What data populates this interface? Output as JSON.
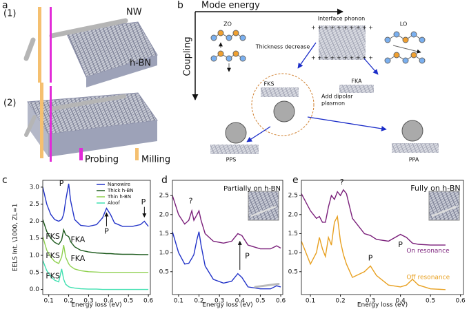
{
  "panel_labels": [
    "a",
    "b",
    "c",
    "d",
    "e"
  ],
  "panel_a": {
    "step_1": "(1)",
    "step_2": "(2)",
    "nanowire": "NW",
    "substrate": "h-BN",
    "probing": "Probing",
    "milling": "Milling"
  },
  "panel_b": {
    "x_axis": "Mode energy",
    "y_axis": "Coupling",
    "zo": "ZO",
    "interface": "Interface phonon",
    "lo": "LO",
    "thickness": "Thickness decrease",
    "fks": "FKS",
    "fka": "FKA",
    "dipolar": [
      "Add dipolar",
      "plasmon"
    ],
    "pps": "PPS",
    "ppa": "PPA"
  },
  "chart_data": [
    {
      "type": "line",
      "xlabel": "Energy loss (eV)",
      "ylabel": "EELS Int. \\1000, ZL=1",
      "x": [
        0.07,
        0.09,
        0.11,
        0.13,
        0.15,
        0.165,
        0.175,
        0.185,
        0.2,
        0.21,
        0.23,
        0.26,
        0.3,
        0.34,
        0.37,
        0.39,
        0.41,
        0.43,
        0.47,
        0.52,
        0.56,
        0.58,
        0.6
      ],
      "series": [
        {
          "name": "Nanowire",
          "color": "#2233c8",
          "values": [
            3.0,
            2.5,
            2.2,
            2.05,
            2.0,
            2.05,
            2.2,
            2.6,
            3.1,
            2.6,
            2.05,
            1.88,
            1.85,
            1.9,
            2.1,
            2.38,
            2.2,
            1.95,
            1.85,
            1.85,
            1.9,
            2.0,
            1.85
          ]
        },
        {
          "name": "Thick h-BN",
          "color": "#1d5a1d",
          "values": [
            2.05,
            1.7,
            1.5,
            1.38,
            1.32,
            1.45,
            1.75,
            1.6,
            1.55,
            1.4,
            1.25,
            1.15,
            1.1,
            1.07,
            1.06,
            1.05,
            1.05,
            1.04,
            1.03,
            1.03,
            1.02,
            1.02,
            1.02
          ]
        },
        {
          "name": "Thin h-BN",
          "color": "#8fd14f",
          "values": [
            1.55,
            1.15,
            0.95,
            0.82,
            0.76,
            0.95,
            1.3,
            0.95,
            0.75,
            0.68,
            0.6,
            0.55,
            0.52,
            0.51,
            0.5,
            0.5,
            0.5,
            0.5,
            0.5,
            0.5,
            0.5,
            0.5,
            0.5
          ]
        },
        {
          "name": "Aloof",
          "color": "#3fe0b0",
          "values": [
            0.85,
            0.55,
            0.38,
            0.27,
            0.22,
            0.6,
            0.3,
            0.15,
            0.08,
            0.06,
            0.04,
            0.02,
            0.01,
            0.01,
            0,
            0,
            0,
            0,
            0,
            0,
            0,
            0,
            0
          ]
        }
      ],
      "xlim": [
        0.07,
        0.61
      ],
      "ylim": [
        -0.15,
        3.2
      ],
      "xticks": [
        0.1,
        0.2,
        0.3,
        0.4,
        0.5,
        0.6
      ],
      "yticks": [
        {
          "value": 0,
          "label": "0.0"
        },
        0.5,
        {
          "value": 1,
          "label": "1.0"
        },
        1.5,
        {
          "value": 2,
          "label": "2.0"
        },
        2.5,
        {
          "value": 3,
          "label": "3.0"
        }
      ],
      "legend": "upper right",
      "annotations": [
        "P",
        "P",
        "P",
        "FKS",
        "FKA",
        "FKS",
        "FKA",
        "FKS"
      ]
    },
    {
      "type": "line",
      "xlabel": "Energy loss (eV)",
      "x": [
        0.07,
        0.1,
        0.13,
        0.15,
        0.165,
        0.175,
        0.19,
        0.2,
        0.21,
        0.23,
        0.27,
        0.32,
        0.36,
        0.39,
        0.41,
        0.44,
        0.5,
        0.55,
        0.58,
        0.6
      ],
      "series": [
        {
          "color": "#7a1f7a",
          "values": [
            2.5,
            2.0,
            1.75,
            1.85,
            2.1,
            1.85,
            2.0,
            2.1,
            1.85,
            1.5,
            1.3,
            1.25,
            1.3,
            1.5,
            1.45,
            1.2,
            1.1,
            1.1,
            1.18,
            1.12
          ]
        },
        {
          "color": "#2233c8",
          "values": [
            1.55,
            1.0,
            0.7,
            0.72,
            0.85,
            0.95,
            1.35,
            1.55,
            1.2,
            0.65,
            0.3,
            0.2,
            0.25,
            0.45,
            0.35,
            0.1,
            0.05,
            0.05,
            0.13,
            0.1
          ]
        }
      ],
      "xlim": [
        0.07,
        0.61
      ],
      "ylim": [
        -0.1,
        2.9
      ],
      "xticks": [
        0.1,
        0.2,
        0.3,
        0.4,
        0.5,
        0.6
      ],
      "yticks": [
        0.5,
        {
          "value": 1,
          "label": "1.0"
        },
        1.5,
        {
          "value": 2,
          "label": "2.0"
        },
        2.5
      ],
      "annotations": [
        "?",
        "P",
        "Partially on h-BN"
      ]
    },
    {
      "type": "line",
      "xlabel": "Energy loss (eV)",
      "x": [
        0.07,
        0.1,
        0.12,
        0.13,
        0.14,
        0.15,
        0.16,
        0.17,
        0.18,
        0.19,
        0.2,
        0.21,
        0.22,
        0.24,
        0.28,
        0.3,
        0.32,
        0.36,
        0.4,
        0.42,
        0.44,
        0.46,
        0.5,
        0.55
      ],
      "series": [
        {
          "name": "On resonance",
          "color": "#7a1f7a",
          "values": [
            2.55,
            2.1,
            1.9,
            1.95,
            1.8,
            1.8,
            2.2,
            2.5,
            2.4,
            2.6,
            2.5,
            2.65,
            2.55,
            1.9,
            1.5,
            1.45,
            1.35,
            1.3,
            1.48,
            1.4,
            1.25,
            1.22,
            1.2,
            1.2
          ]
        },
        {
          "name": "Off resonance",
          "color": "#e8a020",
          "values": [
            1.3,
            0.7,
            1.0,
            1.4,
            1.1,
            0.9,
            1.4,
            1.2,
            1.8,
            1.95,
            1.3,
            0.95,
            0.7,
            0.35,
            0.5,
            0.65,
            0.4,
            0.15,
            0.1,
            0.15,
            0.3,
            0.15,
            0.05,
            0.03
          ]
        }
      ],
      "xlim": [
        0.07,
        0.61
      ],
      "ylim": [
        -0.1,
        2.9
      ],
      "xticks": [
        0.1,
        0.2,
        0.3,
        0.4,
        0.5,
        0.6
      ],
      "yticks": [
        0.5,
        {
          "value": 1,
          "label": "1.0"
        },
        1.5,
        {
          "value": 2,
          "label": "2.0"
        },
        2.5
      ],
      "annotations": [
        "?",
        "P",
        "P",
        "Fully on h-BN"
      ]
    }
  ]
}
